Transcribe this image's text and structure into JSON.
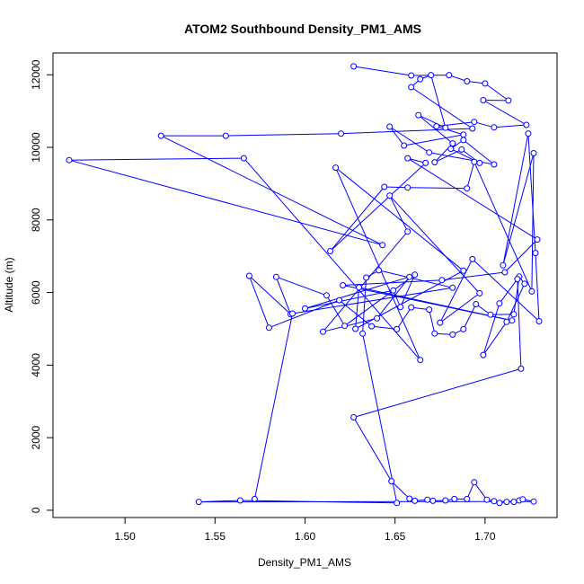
{
  "chart_data": {
    "type": "scatter",
    "title": "ATOM2 Southbound Density_PM1_AMS",
    "xlabel": "Density_PM1_AMS",
    "ylabel": "Altitude (m)",
    "xlim": [
      1.46,
      1.74
    ],
    "ylim": [
      -200,
      12600
    ],
    "xticks": [
      1.5,
      1.55,
      1.6,
      1.65,
      1.7
    ],
    "xtick_labels": [
      "1.50",
      "1.55",
      "1.60",
      "1.65",
      "1.70"
    ],
    "yticks": [
      0,
      2000,
      4000,
      6000,
      8000,
      10000,
      12000
    ],
    "ytick_labels": [
      "0",
      "2000",
      "4000",
      "6000",
      "8000",
      "10000",
      "12000"
    ],
    "grid": false,
    "connected": true,
    "marker": "open-circle",
    "color": "#0000ff",
    "points": [
      [
        1.627,
        12230
      ],
      [
        1.659,
        11980
      ],
      [
        1.68,
        11990
      ],
      [
        1.69,
        11820
      ],
      [
        1.7,
        11760
      ],
      [
        1.713,
        11290
      ],
      [
        1.699,
        11300
      ],
      [
        1.723,
        10620
      ],
      [
        1.705,
        10550
      ],
      [
        1.694,
        10700
      ],
      [
        1.673,
        10580
      ],
      [
        1.688,
        10350
      ],
      [
        1.655,
        10050
      ],
      [
        1.647,
        10570
      ],
      [
        1.669,
        9860
      ],
      [
        1.705,
        9530
      ],
      [
        1.688,
        10200
      ],
      [
        1.681,
        9960
      ],
      [
        1.697,
        9570
      ],
      [
        1.687,
        9940
      ],
      [
        1.672,
        9590
      ],
      [
        1.682,
        10110
      ],
      [
        1.663,
        10890
      ],
      [
        1.678,
        10540
      ],
      [
        1.67,
        11990
      ],
      [
        1.664,
        11880
      ],
      [
        1.659,
        11660
      ],
      [
        1.693,
        10520
      ],
      [
        1.62,
        10380
      ],
      [
        1.556,
        10320
      ],
      [
        1.52,
        10320
      ],
      [
        1.643,
        7310
      ],
      [
        1.469,
        9650
      ],
      [
        1.566,
        9700
      ],
      [
        1.664,
        4140
      ],
      [
        1.617,
        9440
      ],
      [
        1.688,
        6600
      ],
      [
        1.628,
        5000
      ],
      [
        1.63,
        6140
      ],
      [
        1.715,
        5230
      ],
      [
        1.621,
        6200
      ],
      [
        1.676,
        6340
      ],
      [
        1.711,
        6560
      ],
      [
        1.729,
        7460
      ],
      [
        1.657,
        9700
      ],
      [
        1.667,
        9570
      ],
      [
        1.614,
        7140
      ],
      [
        1.644,
        8910
      ],
      [
        1.657,
        8890
      ],
      [
        1.69,
        8870
      ],
      [
        1.694,
        9600
      ],
      [
        1.726,
        6030
      ],
      [
        1.727,
        9840
      ],
      [
        1.71,
        6750
      ],
      [
        1.724,
        10380
      ],
      [
        1.728,
        7090
      ],
      [
        1.73,
        5210
      ],
      [
        1.693,
        6920
      ],
      [
        1.675,
        5170
      ],
      [
        1.697,
        5980
      ],
      [
        1.647,
        8670
      ],
      [
        1.657,
        7680
      ],
      [
        1.61,
        4920
      ],
      [
        1.64,
        5290
      ],
      [
        1.658,
        6430
      ],
      [
        1.6,
        5560
      ],
      [
        1.649,
        6060
      ],
      [
        1.653,
        5600
      ],
      [
        1.661,
        6490
      ],
      [
        1.622,
        5080
      ],
      [
        1.612,
        5920
      ],
      [
        1.584,
        6430
      ],
      [
        1.592,
        5400
      ],
      [
        1.569,
        6460
      ],
      [
        1.58,
        5030
      ],
      [
        1.619,
        5790
      ],
      [
        1.637,
        5070
      ],
      [
        1.651,
        4990
      ],
      [
        1.659,
        5590
      ],
      [
        1.669,
        5530
      ],
      [
        1.672,
        4870
      ],
      [
        1.682,
        4840
      ],
      [
        1.688,
        4990
      ],
      [
        1.695,
        5680
      ],
      [
        1.703,
        5390
      ],
      [
        1.716,
        5400
      ],
      [
        1.719,
        6440
      ],
      [
        1.722,
        6240
      ],
      [
        1.712,
        5190
      ],
      [
        1.699,
        4280
      ],
      [
        1.708,
        5700
      ],
      [
        1.718,
        6370
      ],
      [
        1.72,
        3900
      ],
      [
        1.627,
        2560
      ],
      [
        1.648,
        800
      ],
      [
        1.658,
        320
      ],
      [
        1.661,
        260
      ],
      [
        1.668,
        290
      ],
      [
        1.671,
        260
      ],
      [
        1.678,
        270
      ],
      [
        1.683,
        310
      ],
      [
        1.69,
        310
      ],
      [
        1.694,
        770
      ],
      [
        1.701,
        290
      ],
      [
        1.705,
        250
      ],
      [
        1.708,
        200
      ],
      [
        1.712,
        230
      ],
      [
        1.716,
        230
      ],
      [
        1.719,
        270
      ],
      [
        1.721,
        300
      ],
      [
        1.727,
        240
      ],
      [
        1.541,
        230
      ],
      [
        1.564,
        270
      ],
      [
        1.651,
        200
      ],
      [
        1.632,
        4870
      ],
      [
        1.634,
        6410
      ],
      [
        1.641,
        6610
      ],
      [
        1.682,
        6130
      ],
      [
        1.593,
        5420
      ],
      [
        1.572,
        310
      ]
    ]
  }
}
